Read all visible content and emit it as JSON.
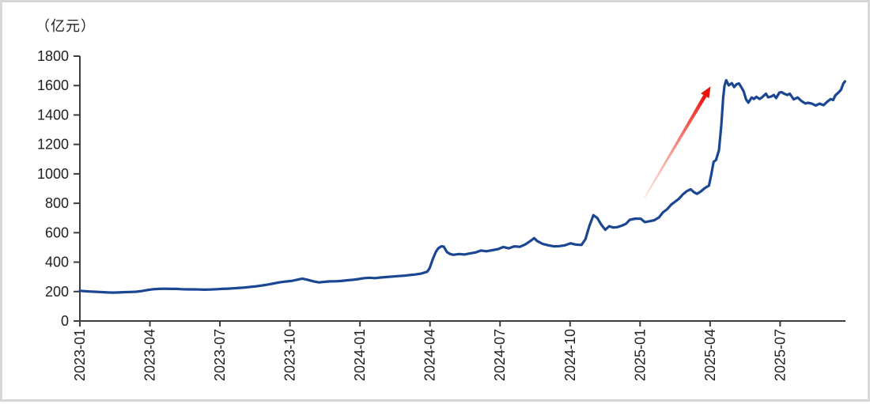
{
  "frame": {
    "background": "#ffffff",
    "border_color": "#d7d7d7"
  },
  "chart_data": {
    "type": "line",
    "title": "",
    "unit_label": "（亿元）",
    "xlabel": "",
    "ylabel": "（亿元）",
    "x_unit": "months_since_2023-01",
    "xlim_months": [
      0,
      32.8
    ],
    "ylim": [
      0,
      1800
    ],
    "grid": false,
    "legend": "none",
    "x_tick_labels": [
      "2023-01",
      "2023-04",
      "2023-07",
      "2023-10",
      "2024-01",
      "2024-04",
      "2024-07",
      "2024-10",
      "2025-01",
      "2025-04",
      "2025-07"
    ],
    "x_tick_months": [
      0,
      3,
      6,
      9,
      12,
      15,
      18,
      21,
      24,
      27,
      30
    ],
    "y_tick_values": [
      0,
      200,
      400,
      600,
      800,
      1000,
      1200,
      1400,
      1600,
      1800
    ],
    "line_color": "#1a4692",
    "axis_color": "#3d3d3d",
    "text_color": "#1f1f1f",
    "series": [
      {
        "name": "",
        "points": [
          [
            0,
            205
          ],
          [
            0.24,
            202
          ],
          [
            0.47,
            200
          ],
          [
            0.71,
            198
          ],
          [
            0.95,
            196
          ],
          [
            1.19,
            194
          ],
          [
            1.42,
            193
          ],
          [
            1.66,
            194
          ],
          [
            1.93,
            196
          ],
          [
            2.17,
            197
          ],
          [
            2.41,
            199
          ],
          [
            2.64,
            203
          ],
          [
            2.92,
            211
          ],
          [
            3.15,
            216
          ],
          [
            3.39,
            218
          ],
          [
            3.63,
            219
          ],
          [
            3.9,
            218
          ],
          [
            4.14,
            218
          ],
          [
            4.37,
            216
          ],
          [
            4.61,
            215
          ],
          [
            4.88,
            215
          ],
          [
            5.12,
            214
          ],
          [
            5.36,
            213
          ],
          [
            5.59,
            214
          ],
          [
            5.86,
            216
          ],
          [
            6.1,
            218
          ],
          [
            6.34,
            220
          ],
          [
            6.58,
            222
          ],
          [
            6.85,
            225
          ],
          [
            7.08,
            228
          ],
          [
            7.32,
            232
          ],
          [
            7.56,
            236
          ],
          [
            7.83,
            242
          ],
          [
            8.07,
            248
          ],
          [
            8.31,
            255
          ],
          [
            8.54,
            262
          ],
          [
            8.81,
            268
          ],
          [
            9.05,
            272
          ],
          [
            9.29,
            280
          ],
          [
            9.53,
            288
          ],
          [
            9.76,
            280
          ],
          [
            10,
            270
          ],
          [
            10.24,
            262
          ],
          [
            10.47,
            266
          ],
          [
            10.71,
            269
          ],
          [
            10.95,
            270
          ],
          [
            11.19,
            272
          ],
          [
            11.42,
            276
          ],
          [
            11.69,
            280
          ],
          [
            11.93,
            285
          ],
          [
            12.17,
            291
          ],
          [
            12.41,
            294
          ],
          [
            12.64,
            291
          ],
          [
            12.92,
            296
          ],
          [
            13.15,
            299
          ],
          [
            13.39,
            302
          ],
          [
            13.63,
            305
          ],
          [
            13.9,
            308
          ],
          [
            14.14,
            312
          ],
          [
            14.37,
            316
          ],
          [
            14.61,
            322
          ],
          [
            14.88,
            335
          ],
          [
            14.98,
            358
          ],
          [
            15.12,
            420
          ],
          [
            15.25,
            470
          ],
          [
            15.36,
            495
          ],
          [
            15.49,
            508
          ],
          [
            15.59,
            505
          ],
          [
            15.73,
            468
          ],
          [
            15.86,
            455
          ],
          [
            16,
            450
          ],
          [
            16.24,
            455
          ],
          [
            16.47,
            452
          ],
          [
            16.71,
            459
          ],
          [
            16.95,
            466
          ],
          [
            17.19,
            479
          ],
          [
            17.42,
            474
          ],
          [
            17.66,
            481
          ],
          [
            17.9,
            488
          ],
          [
            18.14,
            503
          ],
          [
            18.37,
            494
          ],
          [
            18.61,
            507
          ],
          [
            18.85,
            504
          ],
          [
            19.08,
            520
          ],
          [
            19.32,
            546
          ],
          [
            19.46,
            563
          ],
          [
            19.59,
            544
          ],
          [
            19.83,
            524
          ],
          [
            20.07,
            514
          ],
          [
            20.31,
            507
          ],
          [
            20.54,
            509
          ],
          [
            20.78,
            514
          ],
          [
            21.02,
            528
          ],
          [
            21.25,
            519
          ],
          [
            21.49,
            517
          ],
          [
            21.66,
            556
          ],
          [
            21.83,
            648
          ],
          [
            22,
            719
          ],
          [
            22.17,
            699
          ],
          [
            22.34,
            654
          ],
          [
            22.51,
            620
          ],
          [
            22.68,
            644
          ],
          [
            22.85,
            635
          ],
          [
            23.02,
            638
          ],
          [
            23.22,
            648
          ],
          [
            23.39,
            660
          ],
          [
            23.56,
            688
          ],
          [
            23.8,
            696
          ],
          [
            24.03,
            695
          ],
          [
            24.2,
            672
          ],
          [
            24.41,
            678
          ],
          [
            24.61,
            685
          ],
          [
            24.81,
            704
          ],
          [
            24.98,
            738
          ],
          [
            25.15,
            758
          ],
          [
            25.32,
            788
          ],
          [
            25.49,
            810
          ],
          [
            25.66,
            830
          ],
          [
            25.83,
            860
          ],
          [
            26,
            882
          ],
          [
            26.17,
            895
          ],
          [
            26.31,
            875
          ],
          [
            26.44,
            864
          ],
          [
            26.61,
            881
          ],
          [
            26.78,
            904
          ],
          [
            26.95,
            920
          ],
          [
            27.05,
            995
          ],
          [
            27.15,
            1082
          ],
          [
            27.25,
            1093
          ],
          [
            27.38,
            1160
          ],
          [
            27.48,
            1330
          ],
          [
            27.56,
            1520
          ],
          [
            27.62,
            1600
          ],
          [
            27.69,
            1636
          ],
          [
            27.8,
            1601
          ],
          [
            27.93,
            1616
          ],
          [
            28.03,
            1590
          ],
          [
            28.14,
            1610
          ],
          [
            28.24,
            1614
          ],
          [
            28.34,
            1588
          ],
          [
            28.44,
            1560
          ],
          [
            28.54,
            1506
          ],
          [
            28.64,
            1484
          ],
          [
            28.78,
            1519
          ],
          [
            28.88,
            1509
          ],
          [
            28.98,
            1524
          ],
          [
            29.12,
            1509
          ],
          [
            29.22,
            1519
          ],
          [
            29.39,
            1544
          ],
          [
            29.49,
            1520
          ],
          [
            29.63,
            1526
          ],
          [
            29.73,
            1536
          ],
          [
            29.83,
            1515
          ],
          [
            29.97,
            1553
          ],
          [
            30.07,
            1555
          ],
          [
            30.17,
            1545
          ],
          [
            30.31,
            1536
          ],
          [
            30.41,
            1545
          ],
          [
            30.58,
            1506
          ],
          [
            30.75,
            1519
          ],
          [
            30.92,
            1494
          ],
          [
            31.08,
            1478
          ],
          [
            31.19,
            1483
          ],
          [
            31.36,
            1477
          ],
          [
            31.53,
            1464
          ],
          [
            31.69,
            1477
          ],
          [
            31.86,
            1467
          ],
          [
            32.03,
            1492
          ],
          [
            32.17,
            1508
          ],
          [
            32.27,
            1502
          ],
          [
            32.37,
            1534
          ],
          [
            32.51,
            1554
          ],
          [
            32.61,
            1572
          ],
          [
            32.71,
            1614
          ],
          [
            32.78,
            1628
          ]
        ]
      }
    ],
    "annotation_arrow": {
      "from_month": 24.2,
      "from_value": 840,
      "to_month": 26.78,
      "to_value": 1530,
      "color": "#e8150d",
      "tail_color": "#ffc9bd"
    }
  }
}
